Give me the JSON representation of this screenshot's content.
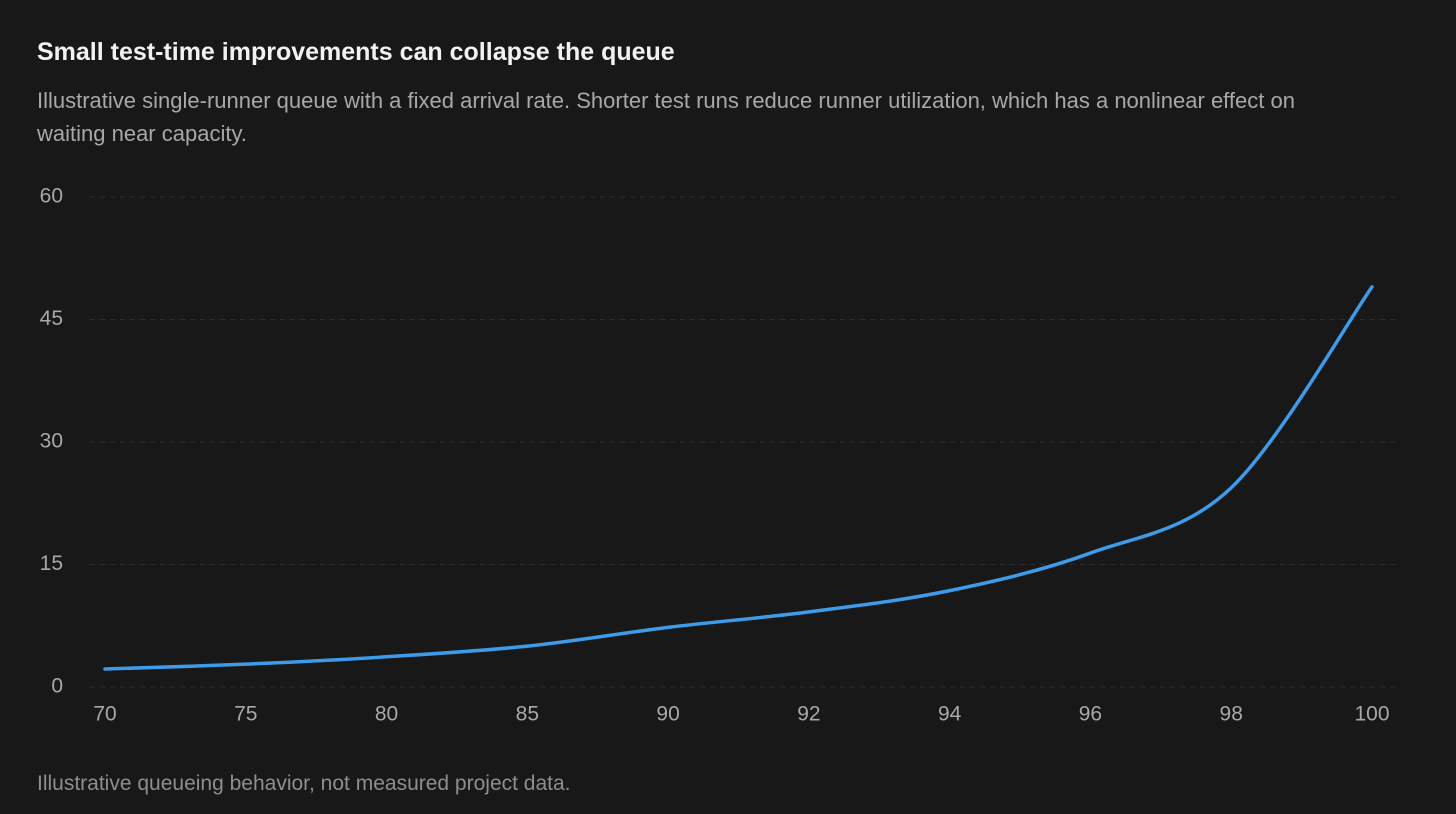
{
  "chart_data": {
    "type": "line",
    "title": "Small test-time improvements can collapse the queue",
    "subtitle": "Illustrative single-runner queue with a fixed arrival rate. Shorter test runs reduce runner utilization, which has a nonlinear effect on waiting near capacity.",
    "footnote": "Illustrative queueing behavior, not measured project data.",
    "categories": [
      "70",
      "75",
      "80",
      "85",
      "90",
      "92",
      "94",
      "96",
      "98",
      "100"
    ],
    "values": [
      2.2,
      2.8,
      3.7,
      5.0,
      7.3,
      9.2,
      11.8,
      16.4,
      24.4,
      49.0
    ],
    "color": "#3d9be9",
    "ylim": [
      0,
      60
    ],
    "yticks": [
      0,
      15,
      30,
      45,
      60
    ],
    "grid": true
  }
}
